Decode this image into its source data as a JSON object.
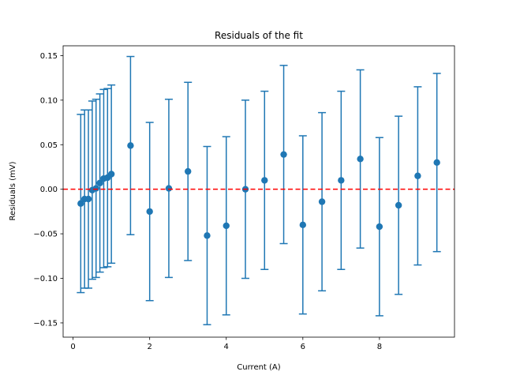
{
  "chart_data": {
    "type": "scatter",
    "title": "Residuals of the fit",
    "xlabel": "Current (A)",
    "ylabel": "Residuals (mV)",
    "xlim": [
      -0.26,
      9.96
    ],
    "ylim": [
      -0.166,
      0.161
    ],
    "x_ticks": [
      0,
      2,
      4,
      6,
      8
    ],
    "x_tick_labels": [
      "0",
      "2",
      "4",
      "6",
      "8"
    ],
    "y_ticks": [
      -0.15,
      -0.1,
      -0.05,
      0.0,
      0.05,
      0.1,
      0.15
    ],
    "y_tick_labels": [
      "−0.15",
      "−0.10",
      "−0.05",
      "0.00",
      "0.05",
      "0.10",
      "0.15"
    ],
    "grid": false,
    "reference_line": {
      "y": 0,
      "style": "dashed",
      "color": "#ff0000"
    },
    "series": [
      {
        "color": "#1f77b4",
        "error": 0.1,
        "x": [
          0.2,
          0.3,
          0.4,
          0.5,
          0.6,
          0.7,
          0.8,
          0.9,
          1.0,
          1.5,
          2.0,
          2.5,
          3.0,
          3.5,
          4.0,
          4.5,
          5.0,
          5.5,
          6.0,
          6.5,
          7.0,
          7.5,
          8.0,
          8.5,
          9.0,
          9.5
        ],
        "y": [
          -0.016,
          -0.011,
          -0.011,
          -0.001,
          0.001,
          0.007,
          0.012,
          0.013,
          0.017,
          0.049,
          -0.025,
          0.001,
          0.02,
          -0.052,
          -0.041,
          0.0,
          0.01,
          0.039,
          -0.04,
          -0.014,
          0.01,
          0.034,
          -0.042,
          -0.018,
          0.015,
          0.03
        ]
      }
    ]
  }
}
